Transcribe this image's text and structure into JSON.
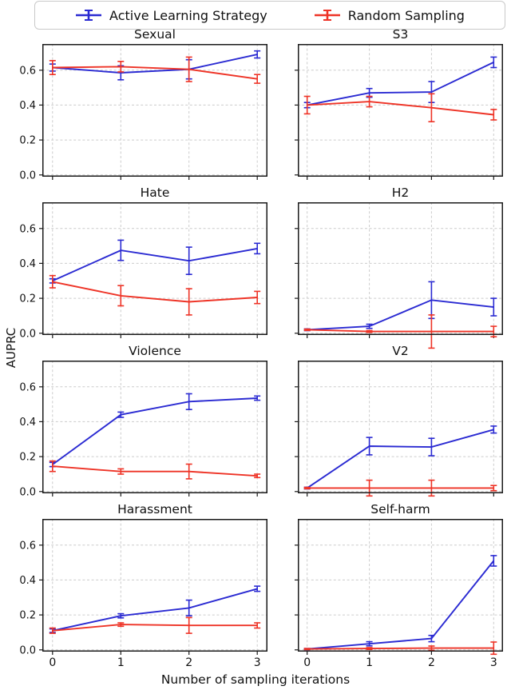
{
  "legend": {
    "items": [
      {
        "label": "Active Learning Strategy",
        "color": "#2a2ad2"
      },
      {
        "label": "Random Sampling",
        "color": "#ee3326"
      }
    ]
  },
  "axes": {
    "ylabel": "AUPRC",
    "xlabel": "Number of sampling iterations"
  },
  "chart_data": {
    "type": "line",
    "title": "",
    "xlabel": "Number of sampling iterations",
    "ylabel": "AUPRC",
    "legend_position": "top-center",
    "grid": true,
    "x": [
      0,
      1,
      2,
      3
    ],
    "x_ticks": [
      0,
      1,
      2,
      3
    ],
    "x_tick_labels": [
      "0",
      "1",
      "2",
      "3"
    ],
    "y_ticks": [
      0.0,
      0.2,
      0.4,
      0.6
    ],
    "y_tick_labels": [
      "0.0",
      "0.2",
      "0.4",
      "0.6"
    ],
    "xlim": [
      -0.15,
      3.15
    ],
    "ylim": [
      -0.01,
      0.75
    ],
    "series_order": [
      "active_learning",
      "random_sampling"
    ],
    "series_names": [
      "Active Learning Strategy",
      "Random Sampling"
    ],
    "colors": {
      "active_learning": "#2a2ad2",
      "random_sampling": "#ee3326"
    },
    "subplots": [
      {
        "title": "Sexual",
        "active_learning": {
          "y": [
            0.615,
            0.585,
            0.605,
            0.69
          ],
          "err": [
            0.02,
            0.04,
            0.055,
            0.02
          ]
        },
        "random_sampling": {
          "y": [
            0.615,
            0.62,
            0.605,
            0.55
          ],
          "err": [
            0.04,
            0.03,
            0.07,
            0.025
          ]
        }
      },
      {
        "title": "S3",
        "active_learning": {
          "y": [
            0.4,
            0.47,
            0.475,
            0.645
          ],
          "err": [
            0.015,
            0.025,
            0.06,
            0.03
          ]
        },
        "random_sampling": {
          "y": [
            0.4,
            0.42,
            0.385,
            0.345
          ],
          "err": [
            0.05,
            0.03,
            0.08,
            0.03
          ]
        }
      },
      {
        "title": "Hate",
        "active_learning": {
          "y": [
            0.3,
            0.475,
            0.415,
            0.485
          ],
          "err": [
            0.012,
            0.058,
            0.078,
            0.03
          ]
        },
        "random_sampling": {
          "y": [
            0.295,
            0.215,
            0.18,
            0.205
          ],
          "err": [
            0.035,
            0.058,
            0.075,
            0.035
          ]
        }
      },
      {
        "title": "H2",
        "active_learning": {
          "y": [
            0.02,
            0.04,
            0.19,
            0.15
          ],
          "err": [
            0.005,
            0.012,
            0.105,
            0.05
          ]
        },
        "random_sampling": {
          "y": [
            0.02,
            0.01,
            0.01,
            0.01
          ],
          "err": [
            0.004,
            0.005,
            0.095,
            0.03
          ]
        }
      },
      {
        "title": "Violence",
        "active_learning": {
          "y": [
            0.155,
            0.44,
            0.515,
            0.535
          ],
          "err": [
            0.012,
            0.015,
            0.045,
            0.012
          ]
        },
        "random_sampling": {
          "y": [
            0.145,
            0.115,
            0.115,
            0.09
          ],
          "err": [
            0.03,
            0.015,
            0.042,
            0.01
          ]
        }
      },
      {
        "title": "V2",
        "active_learning": {
          "y": [
            0.02,
            0.26,
            0.255,
            0.355
          ],
          "err": [
            0.005,
            0.05,
            0.05,
            0.02
          ]
        },
        "random_sampling": {
          "y": [
            0.02,
            0.02,
            0.02,
            0.02
          ],
          "err": [
            0.004,
            0.045,
            0.045,
            0.015
          ]
        }
      },
      {
        "title": "Harassment",
        "active_learning": {
          "y": [
            0.11,
            0.195,
            0.24,
            0.35
          ],
          "err": [
            0.01,
            0.012,
            0.045,
            0.015
          ]
        },
        "random_sampling": {
          "y": [
            0.11,
            0.145,
            0.14,
            0.14
          ],
          "err": [
            0.015,
            0.01,
            0.045,
            0.015
          ]
        }
      },
      {
        "title": "Self-harm",
        "active_learning": {
          "y": [
            0.005,
            0.035,
            0.065,
            0.51
          ],
          "err": [
            0.003,
            0.012,
            0.018,
            0.03
          ]
        },
        "random_sampling": {
          "y": [
            0.005,
            0.008,
            0.01,
            0.01
          ],
          "err": [
            0.003,
            0.005,
            0.012,
            0.035
          ]
        }
      }
    ]
  }
}
